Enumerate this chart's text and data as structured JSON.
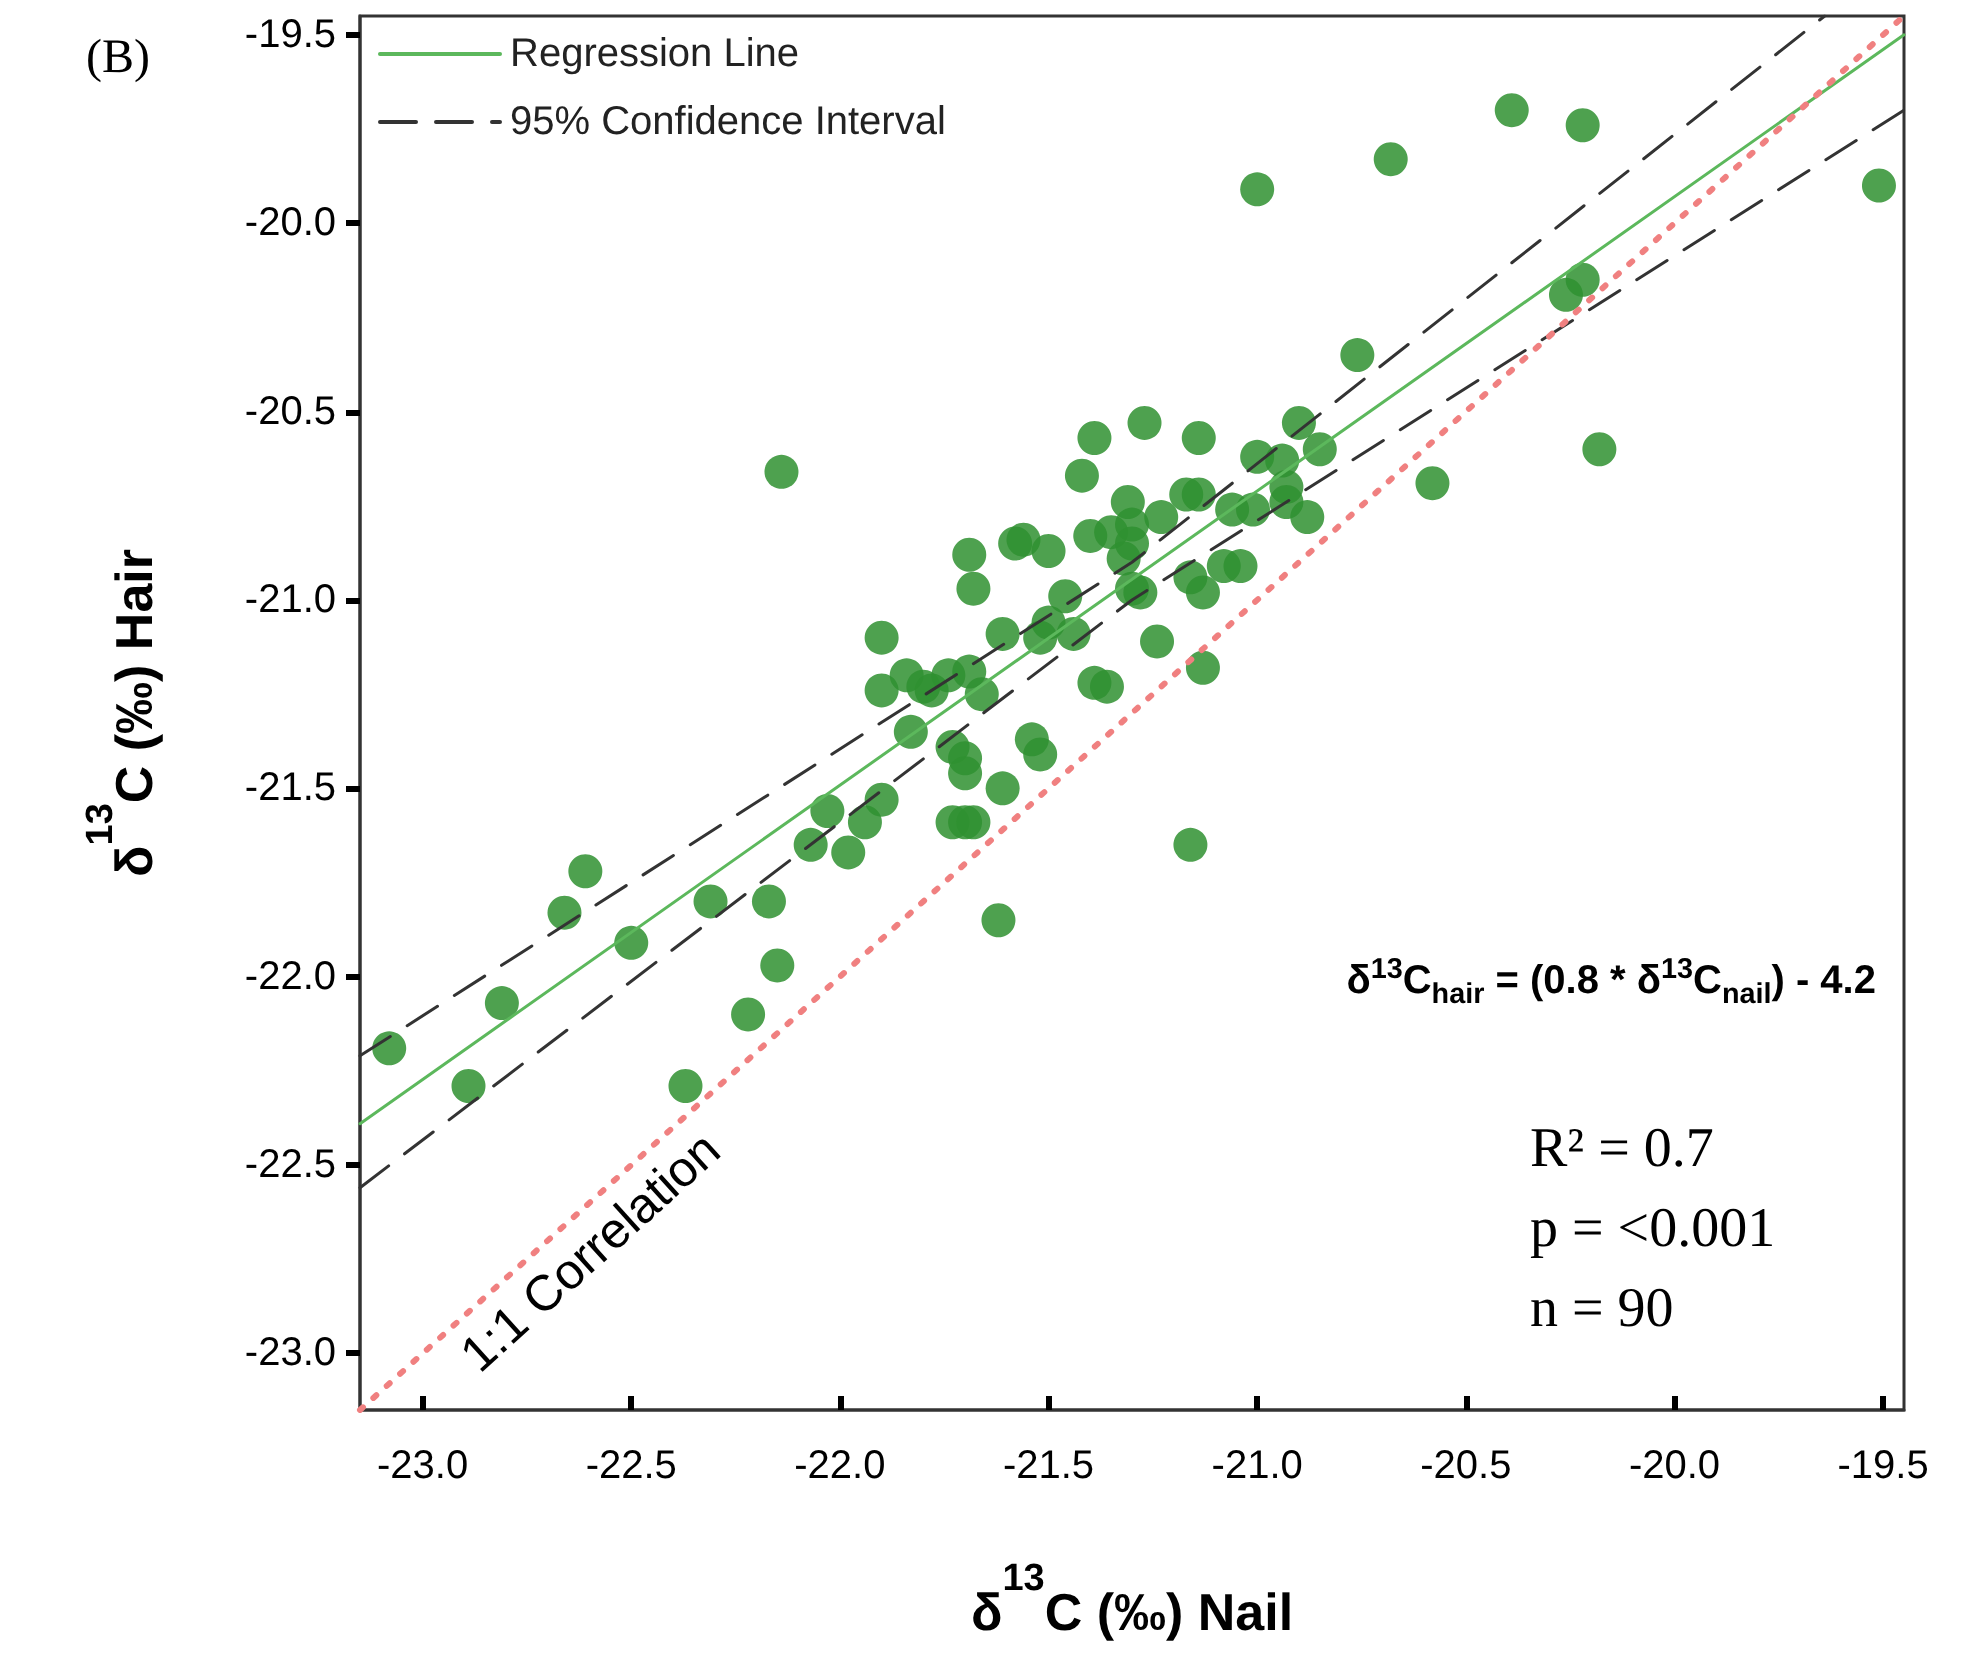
{
  "chart_data": {
    "type": "scatter",
    "title": "(B)",
    "xlabel": "δ$^{13}$C (‰) Nail",
    "ylabel": "δ$^{13}$C (‰) Hair",
    "xlim": [
      -23.15,
      -19.45
    ],
    "ylim": [
      -23.15,
      -19.45
    ],
    "xticks": [
      {
        "value": -23,
        "label": "-23.0"
      },
      {
        "value": -22.5,
        "label": "-22.5"
      },
      {
        "value": -22,
        "label": "-22.0"
      },
      {
        "value": -21.5,
        "label": "-21.5"
      },
      {
        "value": -21,
        "label": "-21.0"
      },
      {
        "value": -20.5,
        "label": "-20.5"
      },
      {
        "value": -20,
        "label": "-20.0"
      },
      {
        "value": -19.5,
        "label": "-19.5"
      }
    ],
    "yticks": [
      {
        "value": -23,
        "label": "-23.0"
      },
      {
        "value": -22.5,
        "label": "-22.5"
      },
      {
        "value": -22,
        "label": "-22.0"
      },
      {
        "value": -21.5,
        "label": "-21.5"
      },
      {
        "value": -21,
        "label": "-21.0"
      },
      {
        "value": -20.5,
        "label": "-20.5"
      },
      {
        "value": -20,
        "label": "-20.0"
      },
      {
        "value": -19.5,
        "label": "-19.5"
      }
    ],
    "grid": false,
    "legend": "top left",
    "series": [
      {
        "color": "#2f9130",
        "marker": "circle",
        "x": [
          -23.08,
          -22.89,
          -22.81,
          -22.66,
          -22.61,
          -22.5,
          -22.37,
          -22.31,
          -22.22,
          -22.17,
          -22.15,
          -22.07,
          -22.03,
          -21.98,
          -21.94,
          -21.9,
          -21.73,
          -21.7,
          -21.68,
          -21.62,
          -21.61,
          -21.52,
          -22.14,
          -21.9,
          -21.9,
          -21.84,
          -21.8,
          -21.78,
          -21.74,
          -21.69,
          -21.66,
          -21.69,
          -21.68,
          -21.58,
          -21.56,
          -21.5,
          -21.46,
          -21.61,
          -21.52,
          -21.5,
          -21.44,
          -21.83,
          -21.73,
          -21.7,
          -21.7,
          -21.54,
          -21.42,
          -21.39,
          -21.4,
          -21.39,
          -21.0,
          -20.68,
          -20.39,
          -20.22,
          -19.51,
          -20.76,
          -20.26,
          -20.22,
          -20.18,
          -20.58,
          -21.27,
          -21.14,
          -20.9,
          -20.85,
          -21.0,
          -20.94,
          -20.93,
          -20.93,
          -20.88,
          -21.06,
          -21.01,
          -21.17,
          -21.14,
          -21.31,
          -21.23,
          -21.35,
          -21.3,
          -21.3,
          -21.32,
          -21.3,
          -21.28,
          -21.16,
          -21.13,
          -21.08,
          -21.04,
          -21.24,
          -21.36,
          -21.13,
          -21.16
        ],
        "values": [
          -22.19,
          -22.29,
          -22.07,
          -21.83,
          -21.72,
          -21.91,
          -22.29,
          -21.8,
          -22.1,
          -21.8,
          -21.97,
          -21.65,
          -21.56,
          -21.67,
          -21.59,
          -21.53,
          -21.59,
          -21.59,
          -21.59,
          -21.85,
          -21.5,
          -21.41,
          -20.66,
          -21.1,
          -21.24,
          -21.2,
          -21.23,
          -21.24,
          -21.2,
          -21.19,
          -21.25,
          -20.88,
          -20.97,
          -20.85,
          -20.84,
          -20.87,
          -20.99,
          -21.09,
          -21.1,
          -21.06,
          -21.09,
          -21.35,
          -21.39,
          -21.42,
          -21.46,
          -21.37,
          -20.67,
          -20.57,
          -20.83,
          -21.22,
          -19.91,
          -19.83,
          -19.7,
          -19.74,
          -19.9,
          -20.35,
          -20.19,
          -20.15,
          -20.6,
          -20.69,
          -20.53,
          -20.57,
          -20.53,
          -20.6,
          -20.62,
          -20.63,
          -20.7,
          -20.74,
          -20.78,
          -20.76,
          -20.76,
          -20.72,
          -20.72,
          -20.74,
          -20.78,
          -20.82,
          -20.8,
          -20.85,
          -20.89,
          -20.97,
          -20.98,
          -20.94,
          -20.98,
          -20.91,
          -20.91,
          -21.11,
          -21.23,
          -21.18,
          -21.65
        ]
      },
      {
        "type": "line",
        "name": "Regression Line",
        "color": "#5cb85c",
        "marker": "none",
        "line_style": "solid",
        "x": [
          -23.15,
          -19.45
        ],
        "values": [
          -22.39,
          -19.5
        ]
      },
      {
        "type": "line",
        "name": "95% Confidence Interval",
        "color": "#333333",
        "marker": "none",
        "line_style": "dashed",
        "x": [
          -23.15,
          -21.3,
          -19.64
        ],
        "values": [
          -22.21,
          -20.9,
          -19.45
        ]
      },
      {
        "type": "line",
        "color": "#333333",
        "marker": "none",
        "line_style": "dashed",
        "x": [
          -23.15,
          -21.3,
          -19.45
        ],
        "values": [
          -22.56,
          -21.0,
          -19.7
        ]
      },
      {
        "type": "line",
        "color": "#f08080",
        "marker": "none",
        "line_style": "dotted",
        "x": [
          -23.15,
          -19.45
        ],
        "values": [
          -23.15,
          -19.45
        ]
      }
    ],
    "annotations": [
      "1:1 Correlation",
      "δ$^{13}$C$_{hair}$ = (0.8 * δ$^{13}$C$_{nail}$) - 4.2",
      "R² = 0.7",
      "p = <0.001",
      "n = 90"
    ]
  }
}
